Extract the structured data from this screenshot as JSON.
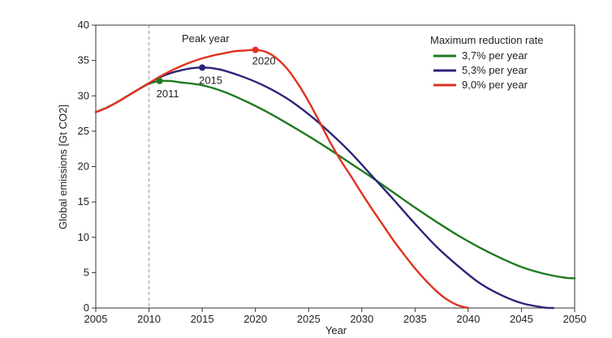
{
  "chart_data": {
    "type": "line",
    "title": "",
    "xlabel": "Year",
    "ylabel": "Global emissions [Gt CO2]",
    "xlim": [
      2005,
      2050
    ],
    "ylim": [
      0,
      40
    ],
    "x_ticks": [
      "2005",
      "2010",
      "2015",
      "2020",
      "2025",
      "2030",
      "2035",
      "2040",
      "2045",
      "2050"
    ],
    "y_ticks": [
      "0",
      "5",
      "10",
      "15",
      "20",
      "25",
      "30",
      "35",
      "40"
    ],
    "grid": false,
    "legend_title": "Maximum reduction rate",
    "legend_position": "top-right",
    "reference_line": {
      "x": 2010,
      "style": "dashed"
    },
    "annotation": "Peak year",
    "series": [
      {
        "name": "3,7% per year",
        "color": "#1f7a1f",
        "peak": {
          "x": 2011,
          "y": 32.1,
          "label": "2011"
        },
        "points": [
          [
            2005,
            27.7
          ],
          [
            2006,
            28.3
          ],
          [
            2007,
            29.1
          ],
          [
            2008,
            30.0
          ],
          [
            2009,
            30.9
          ],
          [
            2010,
            31.7
          ],
          [
            2011,
            32.1
          ],
          [
            2012,
            32.1
          ],
          [
            2013,
            31.9
          ],
          [
            2015,
            31.5
          ],
          [
            2017,
            30.6
          ],
          [
            2019,
            29.3
          ],
          [
            2021,
            27.8
          ],
          [
            2023,
            26.1
          ],
          [
            2025,
            24.3
          ],
          [
            2027,
            22.4
          ],
          [
            2029,
            20.4
          ],
          [
            2031,
            18.4
          ],
          [
            2033,
            16.3
          ],
          [
            2035,
            14.2
          ],
          [
            2037,
            12.2
          ],
          [
            2039,
            10.3
          ],
          [
            2041,
            8.6
          ],
          [
            2043,
            7.1
          ],
          [
            2045,
            5.8
          ],
          [
            2047,
            4.9
          ],
          [
            2049,
            4.3
          ],
          [
            2050,
            4.2
          ]
        ]
      },
      {
        "name": "5,3% per year",
        "color": "#2b2478",
        "peak": {
          "x": 2015,
          "y": 34.0,
          "label": "2015"
        },
        "points": [
          [
            2005,
            27.7
          ],
          [
            2006,
            28.3
          ],
          [
            2007,
            29.1
          ],
          [
            2008,
            30.0
          ],
          [
            2009,
            30.9
          ],
          [
            2010,
            31.8
          ],
          [
            2011,
            32.6
          ],
          [
            2012,
            33.2
          ],
          [
            2013,
            33.6
          ],
          [
            2014,
            33.9
          ],
          [
            2015,
            34.0
          ],
          [
            2016,
            33.9
          ],
          [
            2017,
            33.6
          ],
          [
            2019,
            32.6
          ],
          [
            2021,
            31.3
          ],
          [
            2023,
            29.6
          ],
          [
            2025,
            27.4
          ],
          [
            2027,
            24.8
          ],
          [
            2029,
            21.9
          ],
          [
            2031,
            18.6
          ],
          [
            2033,
            15.3
          ],
          [
            2035,
            11.9
          ],
          [
            2037,
            8.7
          ],
          [
            2039,
            6.0
          ],
          [
            2041,
            3.6
          ],
          [
            2043,
            1.9
          ],
          [
            2045,
            0.7
          ],
          [
            2047,
            0.1
          ],
          [
            2048,
            0.0
          ]
        ]
      },
      {
        "name": "9,0% per year",
        "color": "#e0321e",
        "peak": {
          "x": 2020,
          "y": 36.5,
          "label": "2020"
        },
        "points": [
          [
            2005,
            27.7
          ],
          [
            2006,
            28.3
          ],
          [
            2007,
            29.1
          ],
          [
            2008,
            30.0
          ],
          [
            2009,
            30.9
          ],
          [
            2010,
            31.8
          ],
          [
            2011,
            32.7
          ],
          [
            2012,
            33.5
          ],
          [
            2013,
            34.2
          ],
          [
            2014,
            34.8
          ],
          [
            2015,
            35.3
          ],
          [
            2016,
            35.7
          ],
          [
            2017,
            36.0
          ],
          [
            2018,
            36.3
          ],
          [
            2019,
            36.4
          ],
          [
            2020,
            36.5
          ],
          [
            2021,
            36.2
          ],
          [
            2022,
            35.3
          ],
          [
            2023,
            33.8
          ],
          [
            2024,
            31.7
          ],
          [
            2025,
            29.2
          ],
          [
            2026,
            26.4
          ],
          [
            2027,
            23.5
          ],
          [
            2028,
            20.9
          ],
          [
            2029,
            18.6
          ],
          [
            2030,
            16.2
          ],
          [
            2031,
            13.9
          ],
          [
            2032,
            11.7
          ],
          [
            2033,
            9.5
          ],
          [
            2034,
            7.5
          ],
          [
            2035,
            5.6
          ],
          [
            2036,
            3.9
          ],
          [
            2037,
            2.4
          ],
          [
            2038,
            1.2
          ],
          [
            2039,
            0.4
          ],
          [
            2040,
            0.0
          ]
        ]
      }
    ]
  }
}
